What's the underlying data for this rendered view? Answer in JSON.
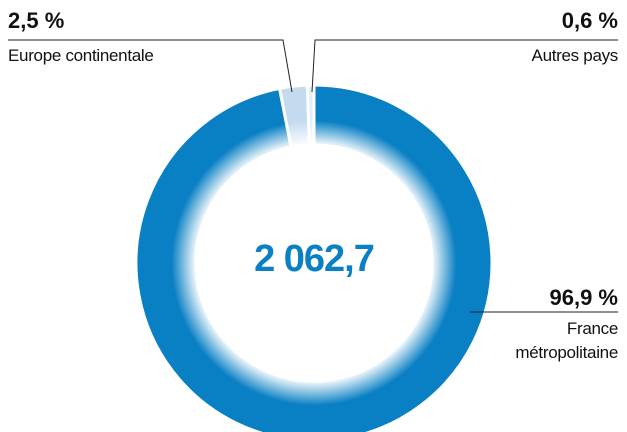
{
  "chart_data": {
    "type": "donut",
    "center_label": "2 062,7",
    "categories": [
      "France métropolitaine",
      "Europe continentale",
      "Autres pays"
    ],
    "values": [
      96.9,
      2.5,
      0.6
    ],
    "value_labels": [
      "96,9 %",
      "2,5 %",
      "0,6 %"
    ],
    "colors": [
      "#0a80c4",
      "#c4dbef",
      "#e2edf8"
    ]
  }
}
